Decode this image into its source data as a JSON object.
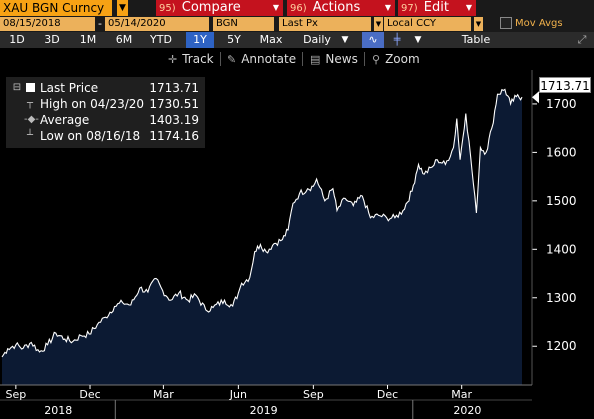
{
  "header": {
    "ticker": "XAU BGN Curncy",
    "buttons": [
      {
        "num": "95)",
        "label": "Compare"
      },
      {
        "num": "96)",
        "label": "Actions"
      },
      {
        "num": "97)",
        "label": "Edit"
      }
    ]
  },
  "fields": {
    "start_date": "08/15/2018",
    "end_date": "05/14/2020",
    "source": "BGN",
    "price_type": "Last Px",
    "currency": "Local CCY",
    "mov_avgs": "Mov Avgs"
  },
  "periods": [
    "1D",
    "3D",
    "1M",
    "6M",
    "YTD",
    "1Y",
    "5Y",
    "Max"
  ],
  "active_period": "1Y",
  "frequency": "Daily",
  "table_label": "Table",
  "toolbar": {
    "track": "Track",
    "annotate": "Annotate",
    "news": "News",
    "zoom": "Zoom"
  },
  "legend": [
    {
      "label": "Last Price",
      "value": "1713.71"
    },
    {
      "label": "High on 04/23/20",
      "value": "1730.51"
    },
    {
      "label": "Average",
      "value": "1403.19"
    },
    {
      "label": "Low on 08/16/18",
      "value": "1174.16"
    }
  ],
  "current_label": "1713.71",
  "colors": {
    "fill": "#0c1a33",
    "line": "#ffffff",
    "accent": "#f7a214",
    "button": "#c4121e"
  },
  "chart_data": {
    "type": "area",
    "title": "",
    "xlabel": "",
    "ylabel": "",
    "ylim": [
      1120,
      1770
    ],
    "yticks": [
      1200,
      1300,
      1400,
      1500,
      1600,
      1700
    ],
    "x_range": [
      "2018-08-15",
      "2020-05-14"
    ],
    "month_ticks": [
      {
        "date": "2018-09-01",
        "label": "Sep"
      },
      {
        "date": "2018-12-01",
        "label": "Dec"
      },
      {
        "date": "2019-03-01",
        "label": "Mar"
      },
      {
        "date": "2019-06-01",
        "label": "Jun"
      },
      {
        "date": "2019-09-01",
        "label": "Sep"
      },
      {
        "date": "2019-12-01",
        "label": "Dec"
      },
      {
        "date": "2020-03-01",
        "label": "Mar"
      }
    ],
    "year_labels": [
      {
        "label": "2018",
        "start": "2018-08-15",
        "end": "2018-12-31"
      },
      {
        "label": "2019",
        "start": "2019-01-01",
        "end": "2019-12-31"
      },
      {
        "label": "2020",
        "start": "2020-01-01",
        "end": "2020-05-14"
      }
    ],
    "series": [
      {
        "points": [
          [
            "2018-08-15",
            1178
          ],
          [
            "2018-08-22",
            1195
          ],
          [
            "2018-09-01",
            1203
          ],
          [
            "2018-09-10",
            1196
          ],
          [
            "2018-09-20",
            1208
          ],
          [
            "2018-09-30",
            1188
          ],
          [
            "2018-10-10",
            1203
          ],
          [
            "2018-10-20",
            1227
          ],
          [
            "2018-10-31",
            1215
          ],
          [
            "2018-11-10",
            1210
          ],
          [
            "2018-11-20",
            1222
          ],
          [
            "2018-11-30",
            1225
          ],
          [
            "2018-12-10",
            1245
          ],
          [
            "2018-12-20",
            1260
          ],
          [
            "2018-12-31",
            1282
          ],
          [
            "2019-01-10",
            1290
          ],
          [
            "2019-01-20",
            1285
          ],
          [
            "2019-01-31",
            1320
          ],
          [
            "2019-02-10",
            1312
          ],
          [
            "2019-02-20",
            1340
          ],
          [
            "2019-02-28",
            1315
          ],
          [
            "2019-03-10",
            1295
          ],
          [
            "2019-03-20",
            1310
          ],
          [
            "2019-03-31",
            1295
          ],
          [
            "2019-04-10",
            1305
          ],
          [
            "2019-04-22",
            1275
          ],
          [
            "2019-05-01",
            1280
          ],
          [
            "2019-05-15",
            1295
          ],
          [
            "2019-05-25",
            1283
          ],
          [
            "2019-06-01",
            1310
          ],
          [
            "2019-06-05",
            1330
          ],
          [
            "2019-06-15",
            1342
          ],
          [
            "2019-06-21",
            1395
          ],
          [
            "2019-06-28",
            1410
          ],
          [
            "2019-07-05",
            1395
          ],
          [
            "2019-07-15",
            1412
          ],
          [
            "2019-07-25",
            1420
          ],
          [
            "2019-08-01",
            1440
          ],
          [
            "2019-08-07",
            1495
          ],
          [
            "2019-08-15",
            1515
          ],
          [
            "2019-08-25",
            1525
          ],
          [
            "2019-09-01",
            1530
          ],
          [
            "2019-09-05",
            1545
          ],
          [
            "2019-09-15",
            1500
          ],
          [
            "2019-09-25",
            1525
          ],
          [
            "2019-09-30",
            1480
          ],
          [
            "2019-10-10",
            1505
          ],
          [
            "2019-10-20",
            1490
          ],
          [
            "2019-10-31",
            1510
          ],
          [
            "2019-11-10",
            1465
          ],
          [
            "2019-11-20",
            1470
          ],
          [
            "2019-11-30",
            1465
          ],
          [
            "2019-12-10",
            1465
          ],
          [
            "2019-12-20",
            1480
          ],
          [
            "2019-12-31",
            1520
          ],
          [
            "2020-01-05",
            1555
          ],
          [
            "2020-01-08",
            1575
          ],
          [
            "2020-01-15",
            1555
          ],
          [
            "2020-01-25",
            1570
          ],
          [
            "2020-01-31",
            1585
          ],
          [
            "2020-02-10",
            1575
          ],
          [
            "2020-02-20",
            1610
          ],
          [
            "2020-02-24",
            1670
          ],
          [
            "2020-02-28",
            1585
          ],
          [
            "2020-03-06",
            1680
          ],
          [
            "2020-03-12",
            1590
          ],
          [
            "2020-03-19",
            1475
          ],
          [
            "2020-03-24",
            1610
          ],
          [
            "2020-03-31",
            1600
          ],
          [
            "2020-04-07",
            1650
          ],
          [
            "2020-04-14",
            1720
          ],
          [
            "2020-04-23",
            1730
          ],
          [
            "2020-04-30",
            1700
          ],
          [
            "2020-05-07",
            1715
          ],
          [
            "2020-05-14",
            1714
          ]
        ]
      }
    ]
  }
}
